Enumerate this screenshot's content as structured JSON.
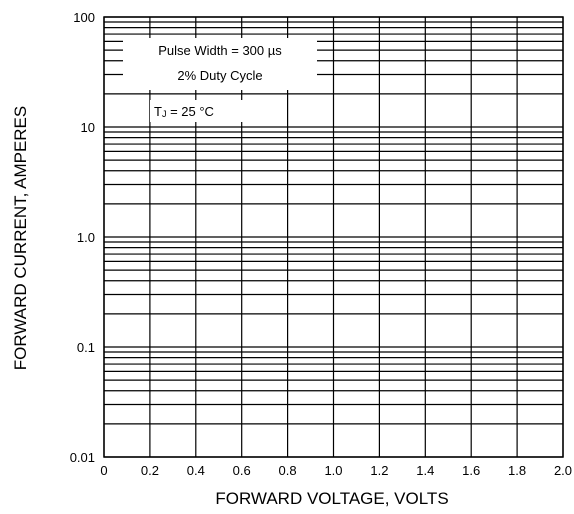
{
  "chart_data": {
    "type": "line",
    "title": "",
    "xlabel": "FORWARD VOLTAGE, VOLTS",
    "ylabel": "FORWARD CURRENT, AMPERES",
    "xlim": [
      0,
      2.0
    ],
    "ylim": [
      0.01,
      100
    ],
    "y_scale": "log",
    "grid": true,
    "x_ticks": [
      0,
      0.2,
      0.4,
      0.6,
      0.8,
      1.0,
      1.2,
      1.4,
      1.6,
      1.8,
      2.0
    ],
    "x_tick_labels": [
      "0",
      "0.2",
      "0.4",
      "0.6",
      "0.8",
      "1.0",
      "1.2",
      "1.4",
      "1.6",
      "1.8",
      "2.0"
    ],
    "y_ticks": [
      0.01,
      0.1,
      1.0,
      10,
      100
    ],
    "y_tick_labels": [
      "0.01",
      "0.1",
      "1.0",
      "10",
      "100"
    ],
    "series": [],
    "annotations": {
      "line1": "Pulse Width = 300 µs",
      "line2": "2% Duty Cycle",
      "line3_main": "T",
      "line3_sub": "J",
      "line3_rest": " = 25 °C"
    }
  }
}
